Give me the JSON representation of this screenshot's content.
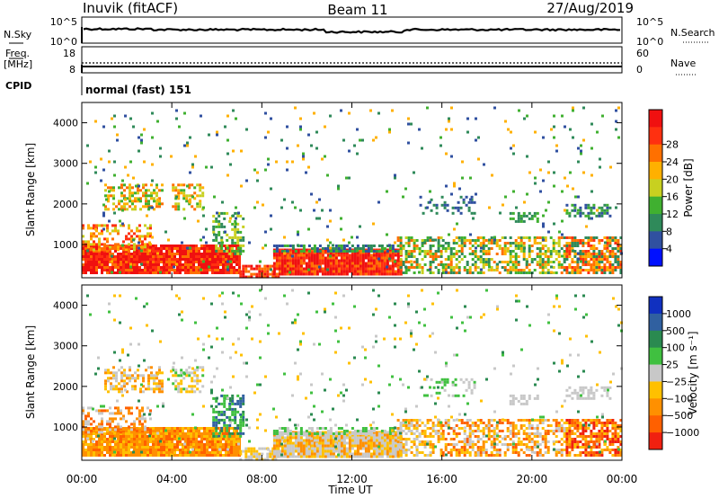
{
  "header": {
    "station": "Inuvik (fitACF)",
    "beam": "Beam 11",
    "date": "27/Aug/2019"
  },
  "noise_panel": {
    "left_label": "N.Sky",
    "right_label": "N.Search",
    "left_ticks": [
      "10^5",
      "10^0"
    ],
    "right_ticks": [
      "10^5",
      "10^0"
    ]
  },
  "freq_panel": {
    "left_label_line1": "Freq.",
    "left_label_line2": "[MHz]",
    "right_label": "Nave",
    "left_ticks": [
      "18",
      "8"
    ],
    "right_ticks": [
      "60",
      "0"
    ]
  },
  "cpid_panel": {
    "label": "CPID",
    "value": "normal (fast) 151"
  },
  "chart_data": [
    {
      "type": "heatmap",
      "name": "power",
      "ylabel": "Slant Range [km]",
      "y_ticks": [
        "1000",
        "2000",
        "3000",
        "4000"
      ],
      "colorbar_label": "Power [dB]",
      "colorbar_ticks": [
        "4",
        "8",
        "12",
        "16",
        "20",
        "24",
        "28"
      ],
      "colorbar_colors": [
        "#0010ff",
        "#3050a0",
        "#2f8a5a",
        "#40b030",
        "#c8d020",
        "#ffb000",
        "#ff7000",
        "#ff3010",
        "#f01010"
      ]
    },
    {
      "type": "heatmap",
      "name": "velocity",
      "ylabel": "Slant Range [km]",
      "y_ticks": [
        "1000",
        "2000",
        "3000",
        "4000"
      ],
      "colorbar_label": "Velocity [m s⁻¹]",
      "colorbar_ticks": [
        "1000",
        "500",
        "100",
        "25",
        "−25",
        "−100",
        "−500",
        "−1000"
      ],
      "colorbar_colors": [
        "#1030c0",
        "#3060a0",
        "#2a8a50",
        "#40c040",
        "#c8c8c8",
        "#ffc000",
        "#ff9000",
        "#ff6000",
        "#f02010"
      ]
    }
  ],
  "x_axis": {
    "ticks": [
      "00:00",
      "04:00",
      "08:00",
      "12:00",
      "16:00",
      "20:00",
      "00:00"
    ],
    "label": "Time UT"
  }
}
